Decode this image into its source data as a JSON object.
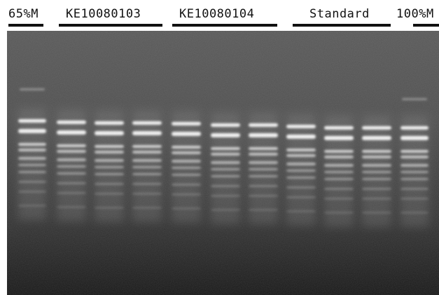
{
  "lane_groups": [
    {
      "label": "65%M"
    },
    {
      "label": "KE10080103"
    },
    {
      "label": "KE10080104"
    },
    {
      "label": "Standard"
    },
    {
      "label": "100%M"
    }
  ],
  "colors": {
    "gel_background": "#4a4a4a",
    "band": "#ffffff"
  }
}
